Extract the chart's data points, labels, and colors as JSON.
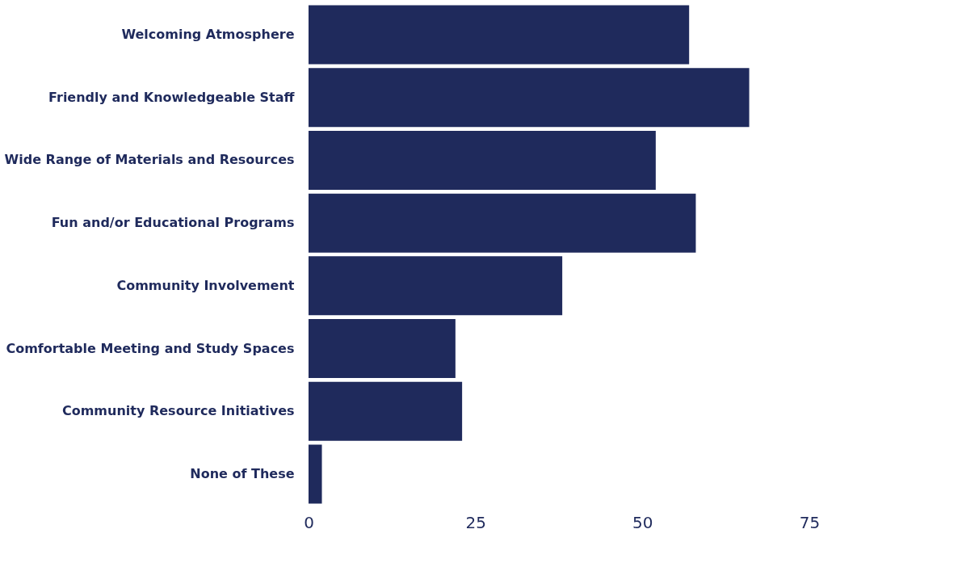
{
  "chart_data": {
    "type": "bar",
    "orientation": "horizontal",
    "categories": [
      "Welcoming Atmosphere",
      "Friendly and Knowledgeable Staff",
      "Wide Range of Materials and Resources",
      "Fun and/or Educational Programs",
      "Community Involvement",
      "Comfortable Meeting and Study Spaces",
      "Community Resource Initiatives",
      "None of These"
    ],
    "values": [
      57,
      66,
      52,
      58,
      38,
      22,
      23,
      2
    ],
    "color": "#1f2a5c",
    "xlim": [
      0,
      75
    ],
    "xticks": [
      0,
      25,
      50,
      75
    ],
    "grid": false
  }
}
